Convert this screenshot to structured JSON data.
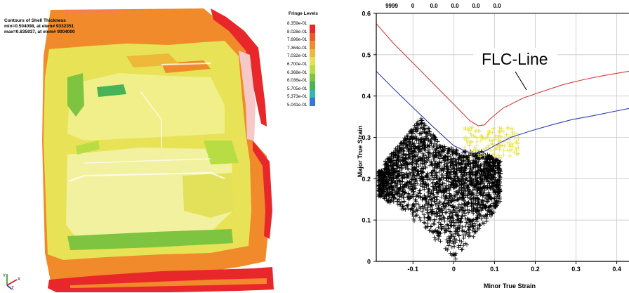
{
  "left_panel": {
    "title": "Contours of Shell Thickness",
    "min_text": "min=0.504098, at elem# 9332351",
    "max_text": "max=0.835937, at elem# 9004000",
    "overlay_text": "18-2-1 Ve5494 elem=0.5494",
    "fringe_title": "Fringe Levels",
    "fringe_levels": [
      {
        "label": "8.359e-01",
        "color": "#e8272b"
      },
      {
        "label": "8.028e-01",
        "color": "#f0582a"
      },
      {
        "label": "7.696e-01",
        "color": "#f08a2a"
      },
      {
        "label": "7.364e-01",
        "color": "#eeb838"
      },
      {
        "label": "7.032e-01",
        "color": "#e3e15a"
      },
      {
        "label": "6.700e-01",
        "color": "#b8dc44"
      },
      {
        "label": "6.368e-01",
        "color": "#7ec440"
      },
      {
        "label": "6.036e-01",
        "color": "#46b456"
      },
      {
        "label": "5.705e-01",
        "color": "#34b6b0"
      },
      {
        "label": "5.373e-01",
        "color": "#3878d0"
      },
      {
        "label": "5.041e-01",
        "color": "#2a3fb0"
      }
    ],
    "axis_labels": {
      "x": "X",
      "y": "Y",
      "z": "Z"
    }
  },
  "chart_data": {
    "type": "scatter",
    "xlabel": "Minor True Strain",
    "ylabel": "Major True Strain",
    "annotation": "FLC-Line",
    "top_labels": [
      "9999",
      "0",
      "0.0",
      "0.0",
      "0.0",
      "0.0"
    ],
    "x_ticks": [
      "-0.1",
      "0",
      "0.1",
      "0.2",
      "0.3",
      "0.4"
    ],
    "y_ticks": [
      "0",
      "0.1",
      "0.2",
      "0.3",
      "0.4",
      "0.5",
      "0.6"
    ],
    "xlim": [
      -0.19,
      0.43
    ],
    "ylim": [
      0,
      0.6
    ],
    "grid": true,
    "series": [
      {
        "color": "#d23b3b",
        "x": [
          -0.19,
          -0.15,
          -0.1,
          -0.05,
          0.0,
          0.04,
          0.06,
          0.075,
          0.09,
          0.12,
          0.17,
          0.22,
          0.27,
          0.32,
          0.37,
          0.43
        ],
        "y": [
          0.575,
          0.53,
          0.48,
          0.43,
          0.38,
          0.34,
          0.328,
          0.33,
          0.345,
          0.37,
          0.395,
          0.412,
          0.428,
          0.44,
          0.45,
          0.46
        ]
      },
      {
        "color": "#2f3fb0",
        "x": [
          -0.19,
          -0.15,
          -0.1,
          -0.05,
          0.0,
          0.04,
          0.06,
          0.08,
          0.1,
          0.14,
          0.19,
          0.24,
          0.29,
          0.34,
          0.39,
          0.43
        ],
        "y": [
          0.46,
          0.42,
          0.372,
          0.325,
          0.28,
          0.262,
          0.262,
          0.268,
          0.28,
          0.3,
          0.316,
          0.33,
          0.343,
          0.352,
          0.362,
          0.37
        ]
      }
    ]
  }
}
